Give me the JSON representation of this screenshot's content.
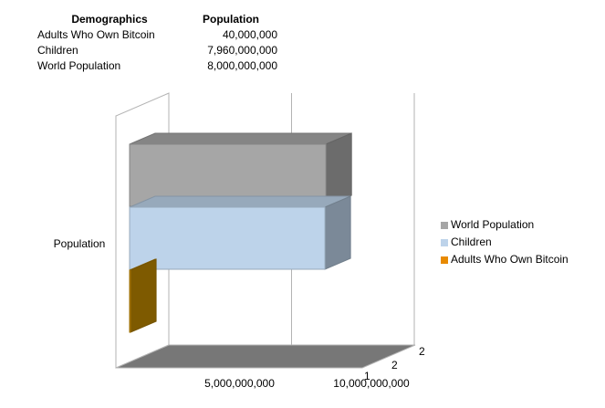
{
  "table": {
    "header": [
      "Demographics",
      "Population"
    ],
    "rows": [
      [
        "Adults Who Own Bitcoin",
        "40,000,000"
      ],
      [
        "Children",
        "7,960,000,000"
      ],
      [
        "World Population",
        "8,000,000,000"
      ]
    ]
  },
  "chart_data": {
    "type": "bar3d_horizontal",
    "categories": [
      "Population"
    ],
    "series": [
      {
        "name": "World Population",
        "color": "#a6a6a6",
        "values": [
          8000000000
        ]
      },
      {
        "name": "Children",
        "color": "#bdd3ea",
        "values": [
          7960000000
        ]
      },
      {
        "name": "Adults Who Own Bitcoin",
        "color": "#e88a00",
        "values": [
          40000000
        ]
      }
    ],
    "xlim": [
      0,
      10000000000
    ],
    "xticks": [
      {
        "value": 5000000000,
        "label": "5,000,000,000"
      },
      {
        "value": 10000000000,
        "label": "10,000,000,000"
      }
    ],
    "depth_labels": [
      "2",
      "2",
      "1"
    ],
    "grid": true,
    "legend": "right"
  }
}
